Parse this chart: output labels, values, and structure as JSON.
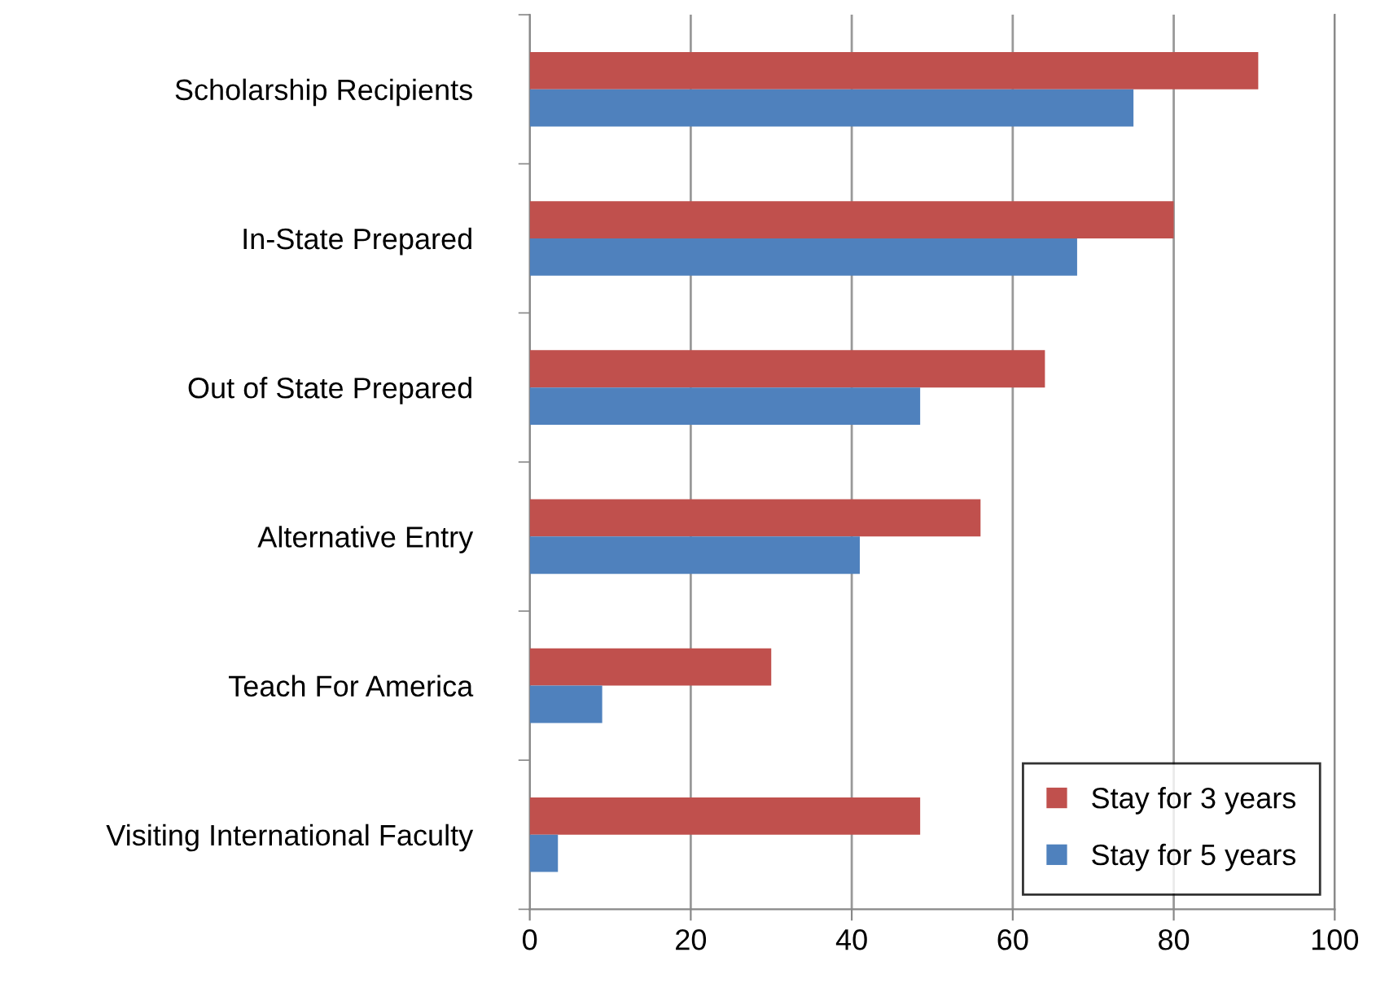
{
  "chart_data": {
    "type": "bar",
    "orientation": "horizontal",
    "categories": [
      "Scholarship Recipients",
      "In-State Prepared",
      "Out of State Prepared",
      "Alternative Entry",
      "Teach For America",
      "Visiting International Faculty"
    ],
    "series": [
      {
        "name": "Stay for 3 years",
        "color": "#c0504d",
        "values": [
          90.5,
          80,
          64,
          56,
          30,
          48.5
        ]
      },
      {
        "name": "Stay for 5 years",
        "color": "#4f81bd",
        "values": [
          75,
          68,
          48.5,
          41,
          9,
          3.5
        ]
      }
    ],
    "xlim": [
      0,
      100
    ],
    "xticks": [
      0,
      20,
      40,
      60,
      80,
      100
    ],
    "grid": "x",
    "legend": "bottom right"
  }
}
